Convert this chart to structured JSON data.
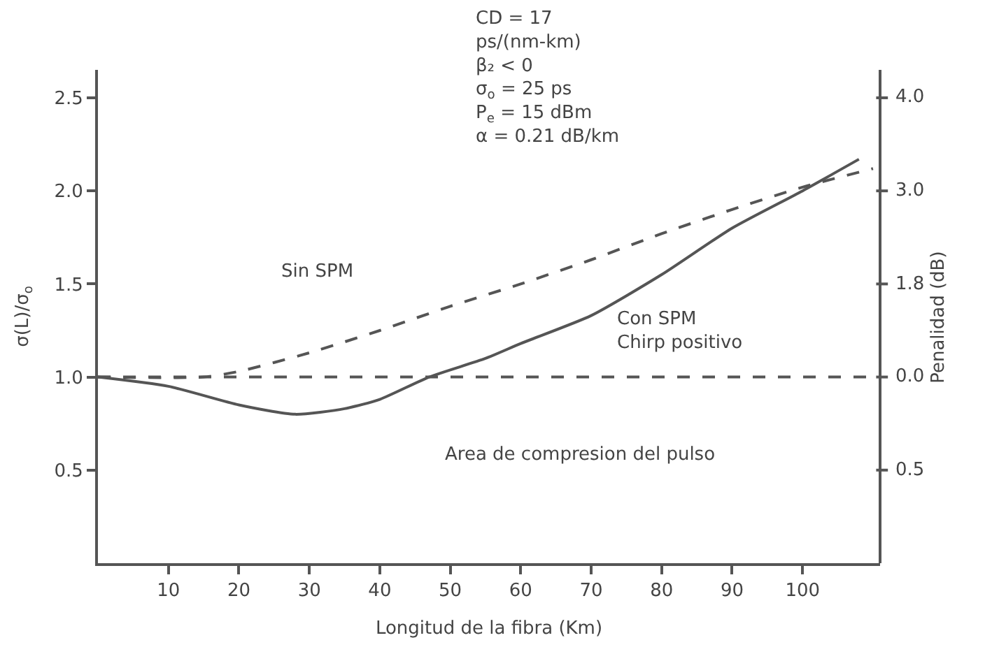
{
  "chart_data": {
    "type": "line",
    "xlabel": "Longitud de la fibra (Km)",
    "ylabel": "σ(L)/σ$_{o}$",
    "y2label": "Penalidad (dB)",
    "xlim": [
      0,
      111
    ],
    "xticks": [
      10,
      20,
      30,
      40,
      50,
      60,
      70,
      80,
      90,
      100
    ],
    "ylim": [
      0,
      2.65
    ],
    "yticks": [
      0.5,
      {
        "value": 1,
        "label": "1.0"
      },
      1.5,
      {
        "value": 2,
        "label": "2.0"
      },
      2.5
    ],
    "marker": "none",
    "series": [
      {
        "color": "#555555",
        "line_style": "solid",
        "x": [
          0,
          10,
          20,
          28,
          35,
          40,
          47,
          55,
          60,
          70,
          80,
          90,
          100,
          108
        ],
        "values": [
          1.0,
          0.95,
          0.85,
          0.8,
          0.83,
          0.88,
          1.0,
          1.1,
          1.18,
          1.33,
          1.55,
          1.8,
          2.0,
          2.17
        ]
      },
      {
        "color": "#555555",
        "line_style": "dashed",
        "x": [
          0,
          15,
          20,
          30,
          40,
          50,
          60,
          70,
          80,
          90,
          100,
          110
        ],
        "values": [
          1.0,
          1.0,
          1.03,
          1.13,
          1.25,
          1.38,
          1.5,
          1.63,
          1.77,
          1.9,
          2.02,
          2.12
        ]
      }
    ],
    "ref_lines": [
      {
        "axis": "y",
        "value": 1.0,
        "color": "#555555",
        "line_style": "dashed"
      }
    ],
    "annotations": [
      "CD = 17\nps/(nm-km)\nβ₂ < 0\nσ$_{o}$ = 25 ps\nP$_{e}$ = 15 dBm\nα = 0.21 dB/km",
      "Sin SPM",
      "Con SPM\nChirp positivo",
      "Area de compresion del pulso",
      "0.5",
      "0.0",
      "1.8",
      "3.0",
      "4.0"
    ]
  }
}
